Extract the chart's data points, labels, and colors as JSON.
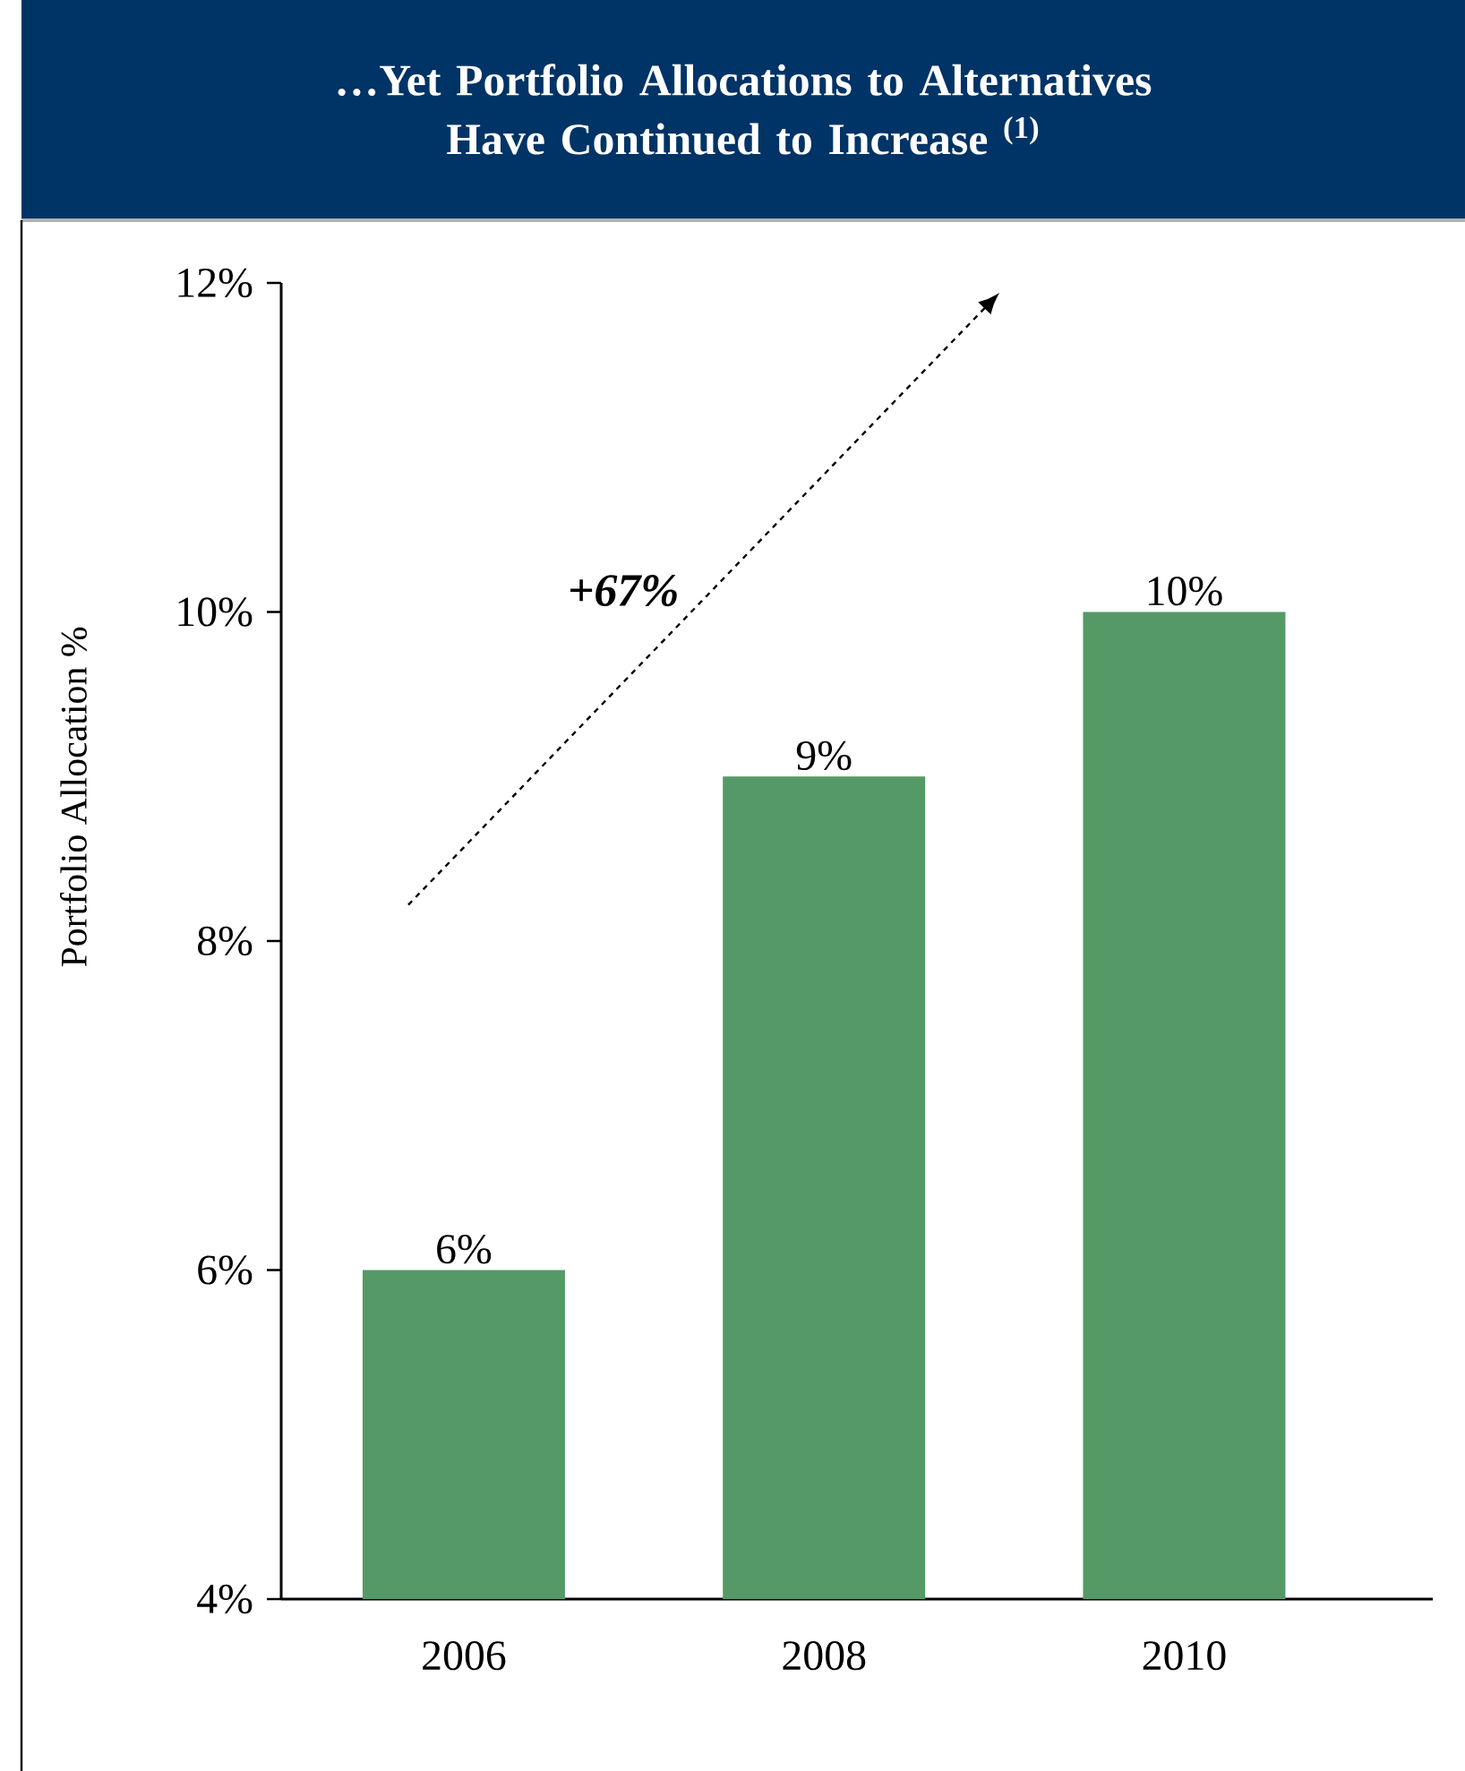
{
  "chart_data": {
    "type": "bar",
    "title": "…Yet Portfolio Allocations to Alternatives Have Continued to Increase $^{(1)}$",
    "ylabel": "Portfolio Allocation %",
    "categories": [
      "2006",
      "2008",
      "2010"
    ],
    "values": [
      6,
      9,
      10
    ],
    "value_labels": [
      "6%",
      "9%",
      "10%"
    ],
    "color": "#559966",
    "ylim": [
      4,
      12
    ],
    "yticks": [
      {
        "value": 4,
        "label": "4%"
      },
      {
        "value": 6,
        "label": "6%"
      },
      {
        "value": 8,
        "label": "8%"
      },
      {
        "value": 10,
        "label": "10%"
      },
      {
        "value": 12,
        "label": "12%"
      }
    ],
    "annotations": [
      "+67%"
    ]
  }
}
